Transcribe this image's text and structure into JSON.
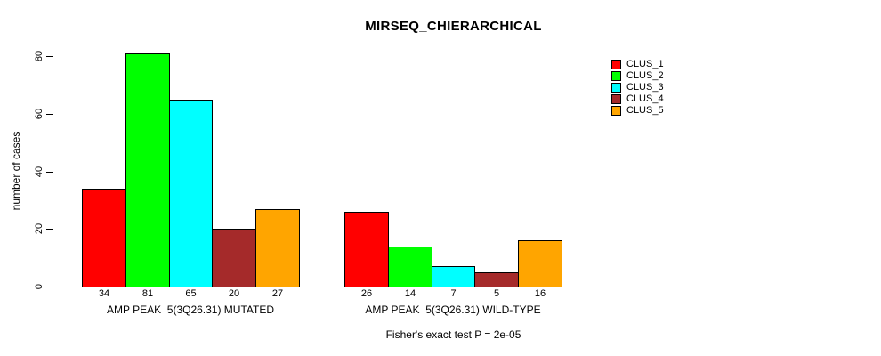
{
  "title": "MIRSEQ_CHIERARCHICAL",
  "background_color": "#ffffff",
  "axis_color": "#000000",
  "chart_data": {
    "type": "bar",
    "title": "MIRSEQ_CHIERARCHICAL",
    "xlabel": "",
    "ylabel": "number of cases",
    "ylim": [
      0,
      80
    ],
    "yticks": [
      0,
      20,
      40,
      60,
      80
    ],
    "grid": false,
    "legend_position": "right-outside",
    "categories": [
      "AMP PEAK  5(3Q26.31) MUTATED",
      "AMP PEAK  5(3Q26.31) WILD-TYPE"
    ],
    "series": [
      {
        "name": "CLUS_1",
        "color": "#FF0000",
        "values": [
          34,
          26
        ]
      },
      {
        "name": "CLUS_2",
        "color": "#00FF00",
        "values": [
          81,
          14
        ]
      },
      {
        "name": "CLUS_3",
        "color": "#00FFFF",
        "values": [
          65,
          7
        ]
      },
      {
        "name": "CLUS_4",
        "color": "#A52A2A",
        "values": [
          20,
          5
        ]
      },
      {
        "name": "CLUS_5",
        "color": "#FFA500",
        "values": [
          27,
          16
        ]
      }
    ],
    "bar_value_labels": [
      [
        "34",
        "81",
        "65",
        "20",
        "27"
      ],
      [
        "26",
        "14",
        "7",
        "5",
        "16"
      ]
    ],
    "annotation": "Fisher's exact test P = 2e-05"
  }
}
